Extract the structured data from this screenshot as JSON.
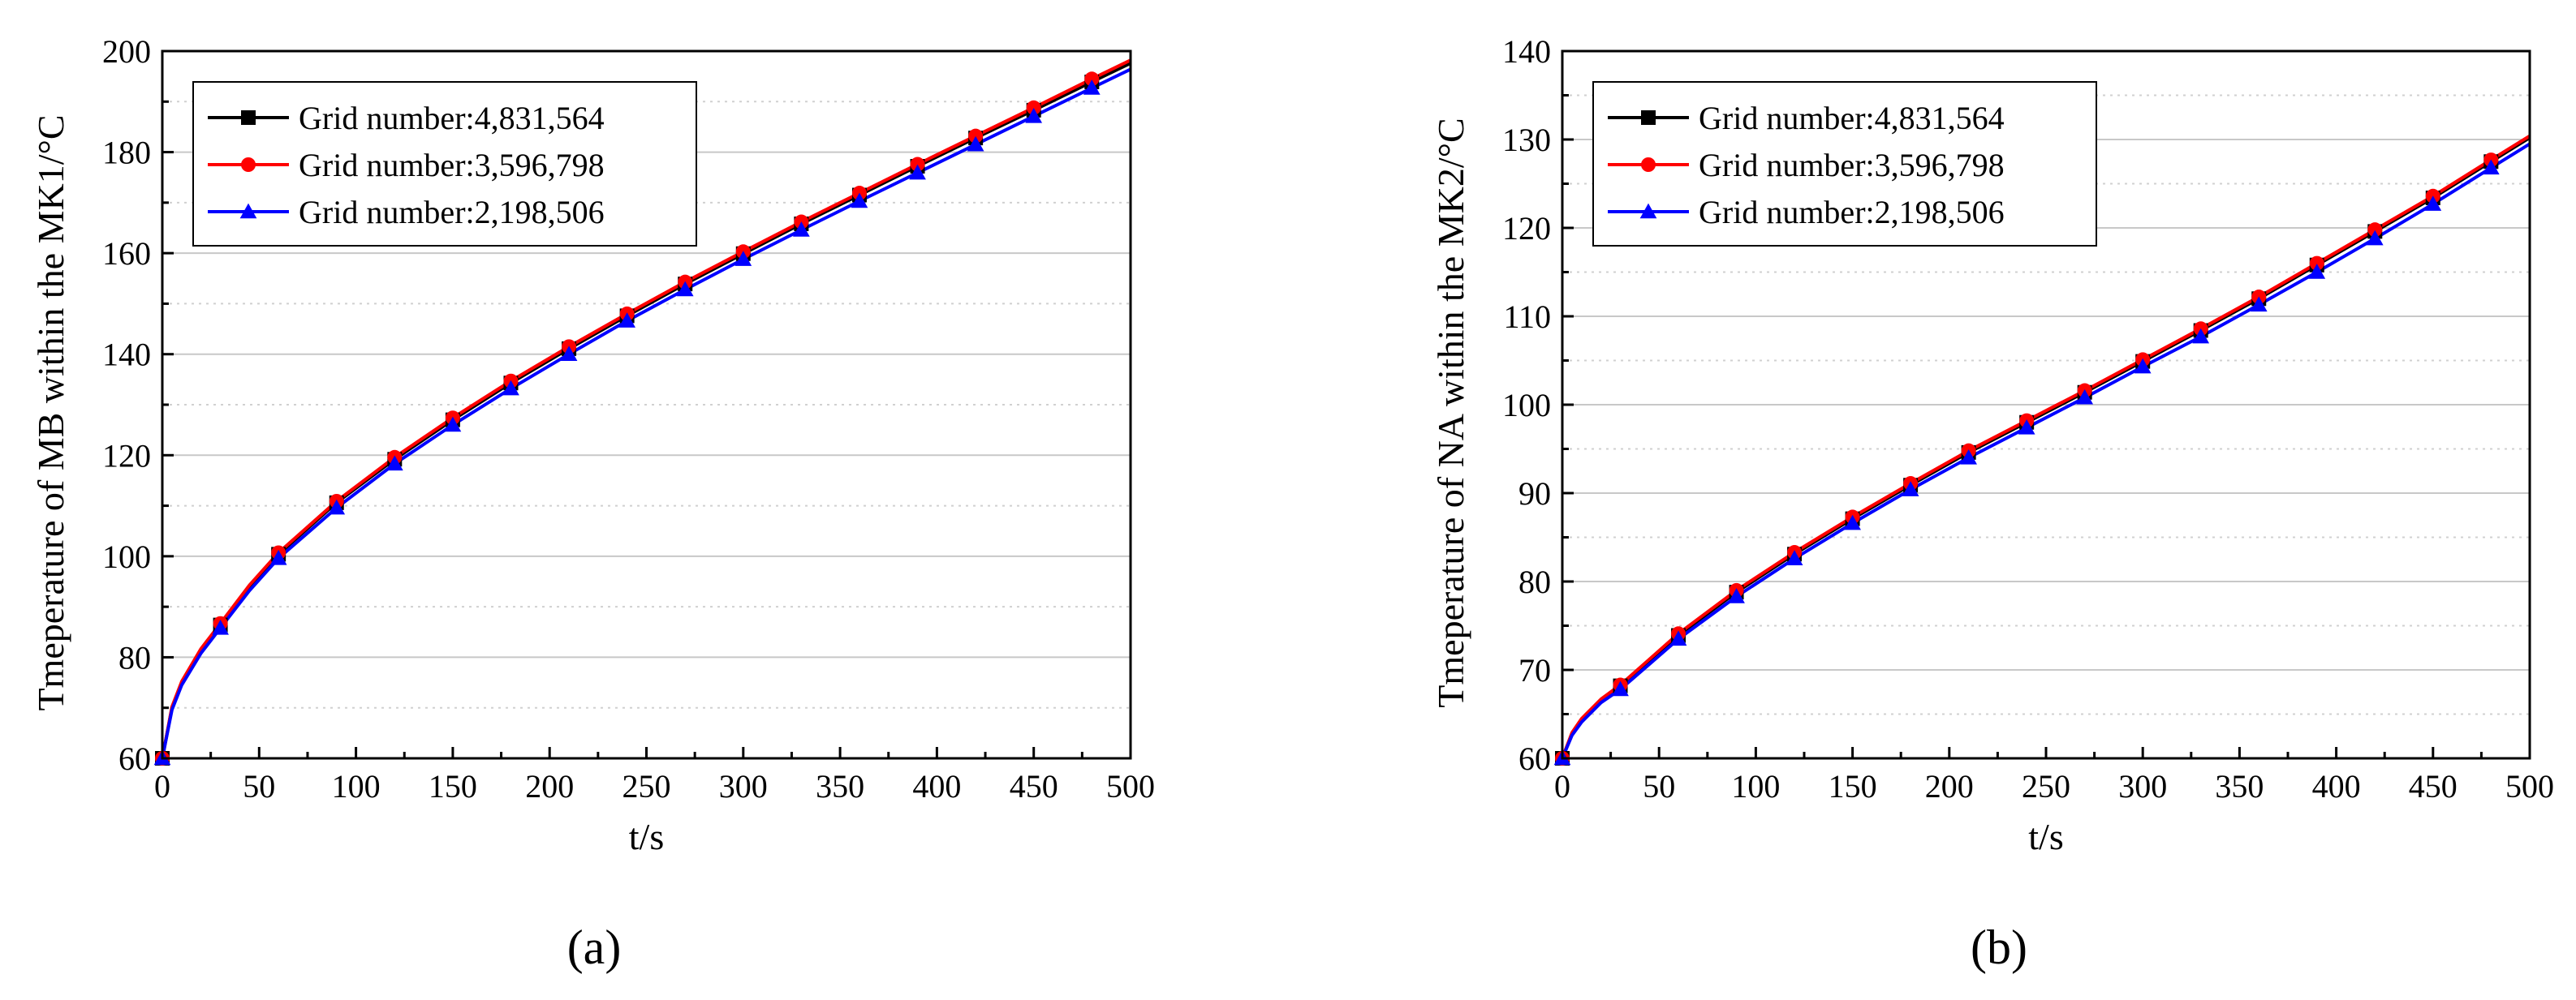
{
  "figure": {
    "panel_labels": [
      "(a)",
      "(b)"
    ]
  },
  "chart_data": [
    {
      "type": "line",
      "title": "",
      "xlabel": "t/s",
      "ylabel": "Tmeperature of MB within the MK1/°C",
      "xlim": [
        0,
        500
      ],
      "ylim": [
        60,
        200
      ],
      "xticks": [
        0,
        50,
        100,
        150,
        200,
        250,
        300,
        350,
        400,
        450,
        500
      ],
      "yticks": [
        60,
        80,
        100,
        120,
        140,
        160,
        180,
        200
      ],
      "grid": true,
      "legend_position": "top-left",
      "marker_x": [
        0,
        30,
        60,
        90,
        120,
        150,
        180,
        210,
        240,
        270,
        300,
        330,
        360,
        390,
        420,
        450,
        480
      ],
      "series": [
        {
          "name": "Grid number:4,831,564",
          "color": "#000000",
          "marker": "square",
          "x": [
            0,
            5,
            10,
            20,
            30,
            45,
            60,
            90,
            120,
            150,
            180,
            210,
            240,
            270,
            300,
            330,
            360,
            390,
            420,
            450,
            480,
            500
          ],
          "y": [
            60,
            70,
            75,
            81.5,
            86.4,
            94,
            100.4,
            110.6,
            119.2,
            127,
            134.3,
            141.1,
            147.6,
            153.9,
            159.9,
            165.8,
            171.5,
            177.2,
            182.8,
            188.3,
            193.9,
            197.6
          ]
        },
        {
          "name": "Grid number:3,596,798",
          "color": "#ff0000",
          "marker": "circle",
          "x": [
            0,
            5,
            10,
            20,
            30,
            45,
            60,
            90,
            120,
            150,
            180,
            210,
            240,
            270,
            300,
            330,
            360,
            390,
            420,
            450,
            480,
            500
          ],
          "y": [
            60,
            70.2,
            75.2,
            81.7,
            86.7,
            94.3,
            100.7,
            110.9,
            119.6,
            127.4,
            134.7,
            141.5,
            148,
            154.3,
            160.3,
            166.2,
            171.9,
            177.6,
            183.2,
            188.8,
            194.5,
            198.2
          ]
        },
        {
          "name": "Grid number:2,198,506",
          "color": "#0000ff",
          "marker": "triangle",
          "x": [
            0,
            5,
            10,
            20,
            30,
            45,
            60,
            90,
            120,
            150,
            180,
            210,
            240,
            270,
            300,
            330,
            360,
            390,
            420,
            450,
            480,
            500
          ],
          "y": [
            60,
            69.6,
            74.5,
            80.8,
            85.8,
            93.2,
            99.6,
            109.6,
            118.3,
            126,
            133.2,
            140,
            146.6,
            152.8,
            158.8,
            164.6,
            170.3,
            175.9,
            181.5,
            187.1,
            192.7,
            196.4
          ]
        }
      ]
    },
    {
      "type": "line",
      "title": "",
      "xlabel": "t/s",
      "ylabel": "Tmeperature of NA within the MK2/°C",
      "xlim": [
        0,
        500
      ],
      "ylim": [
        60,
        140
      ],
      "xticks": [
        0,
        50,
        100,
        150,
        200,
        250,
        300,
        350,
        400,
        450,
        500
      ],
      "yticks": [
        60,
        70,
        80,
        90,
        100,
        110,
        120,
        130,
        140
      ],
      "grid": true,
      "legend_position": "top-left",
      "marker_x": [
        0,
        30,
        60,
        90,
        120,
        150,
        180,
        210,
        240,
        270,
        300,
        330,
        360,
        390,
        420,
        450,
        480
      ],
      "series": [
        {
          "name": "Grid number:4,831,564",
          "color": "#000000",
          "marker": "square",
          "x": [
            0,
            5,
            10,
            20,
            30,
            60,
            90,
            120,
            150,
            180,
            210,
            240,
            270,
            300,
            330,
            360,
            390,
            420,
            450,
            480,
            500
          ],
          "y": [
            60,
            62.8,
            64.4,
            66.6,
            68.2,
            73.9,
            78.8,
            83.1,
            87.1,
            90.9,
            94.6,
            98,
            101.4,
            104.9,
            108.4,
            112,
            115.8,
            119.6,
            123.4,
            127.5,
            130.2
          ]
        },
        {
          "name": "Grid number:3,596,798",
          "color": "#ff0000",
          "marker": "circle",
          "x": [
            0,
            5,
            10,
            20,
            30,
            60,
            90,
            120,
            150,
            180,
            210,
            240,
            270,
            300,
            330,
            360,
            390,
            420,
            450,
            480,
            500
          ],
          "y": [
            60,
            62.9,
            64.5,
            66.7,
            68.3,
            74.1,
            79,
            83.3,
            87.3,
            91.1,
            94.8,
            98.2,
            101.6,
            105.1,
            108.6,
            112.2,
            116,
            119.8,
            123.6,
            127.7,
            130.4
          ]
        },
        {
          "name": "Grid number:2,198,506",
          "color": "#0000ff",
          "marker": "triangle",
          "x": [
            0,
            5,
            10,
            20,
            30,
            60,
            90,
            120,
            150,
            180,
            210,
            240,
            270,
            300,
            330,
            360,
            390,
            420,
            450,
            480,
            500
          ],
          "y": [
            60,
            62.6,
            64.1,
            66.3,
            67.8,
            73.5,
            78.3,
            82.6,
            86.6,
            90.4,
            94,
            97.4,
            100.8,
            104.3,
            107.7,
            111.3,
            115,
            118.8,
            122.7,
            126.8,
            129.5
          ]
        }
      ]
    }
  ]
}
